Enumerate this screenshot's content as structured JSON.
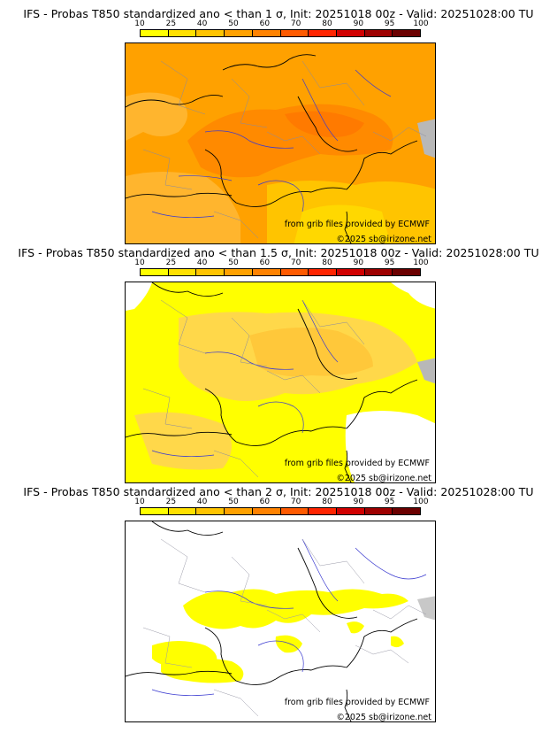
{
  "scale": {
    "ticks": [
      "10",
      "25",
      "40",
      "50",
      "60",
      "70",
      "80",
      "90",
      "95",
      "100"
    ],
    "colors": [
      "#ffff00",
      "#ffe000",
      "#ffc400",
      "#ffa100",
      "#ff8200",
      "#ff5a00",
      "#ff2400",
      "#d10000",
      "#9e0000",
      "#6b0000"
    ]
  },
  "panels": [
    {
      "title": "IFS - Probas T850  standardized ano < than 1 σ, Init: 20251018 00z - Valid: 20251028:00 TU",
      "credit_source": "from grib files provided by ECMWF",
      "credit_copyright": "©2025 sb@irizone.net"
    },
    {
      "title": "IFS - Probas T850  standardized ano < than 1.5 σ, Init: 20251018 00z - Valid: 20251028:00 TU",
      "credit_source": "from grib files provided by ECMWF",
      "credit_copyright": "©2025 sb@irizone.net"
    },
    {
      "title": "IFS - Probas T850  standardized ano < than 2 σ, Init: 20251018 00z - Valid: 20251028:00 TU",
      "credit_source": "from grib files provided by ECMWF",
      "credit_copyright": "©2025 sb@irizone.net"
    }
  ]
}
